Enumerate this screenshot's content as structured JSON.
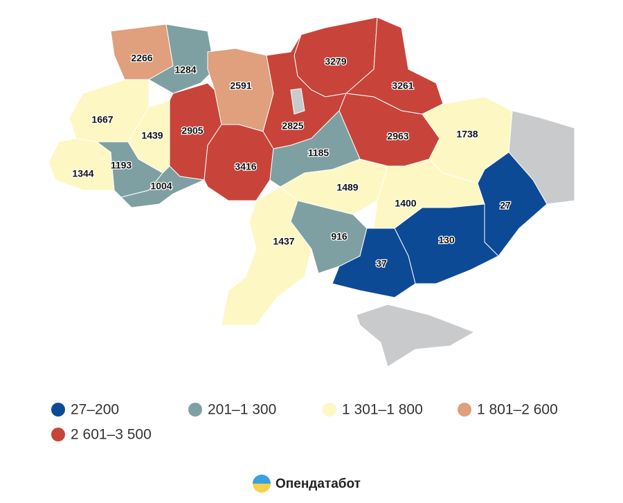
{
  "legend": [
    {
      "label": "27–200",
      "color": "#0d4a96"
    },
    {
      "label": "201–1 300",
      "color": "#7fa0a3"
    },
    {
      "label": "1 301–1 800",
      "color": "#fdf7c3"
    },
    {
      "label": "1 801–2 600",
      "color": "#e09f7d"
    },
    {
      "label": "2 601–3 500",
      "color": "#c8443a"
    }
  ],
  "regions": [
    {
      "value": 2266
    },
    {
      "value": 1284
    },
    {
      "value": 2591
    },
    {
      "value": 3279
    },
    {
      "value": 3261
    },
    {
      "value": 1667
    },
    {
      "value": 1439
    },
    {
      "value": 2905
    },
    {
      "value": 2825
    },
    {
      "value": 2963
    },
    {
      "value": 1738
    },
    {
      "value": 1344
    },
    {
      "value": 1193
    },
    {
      "value": 1004
    },
    {
      "value": 3416
    },
    {
      "value": 1185
    },
    {
      "value": 1489
    },
    {
      "value": 1400
    },
    {
      "value": 27
    },
    {
      "value": 1437
    },
    {
      "value": 916
    },
    {
      "value": 130
    },
    {
      "value": 37
    }
  ],
  "brand": "Опендатабот"
}
